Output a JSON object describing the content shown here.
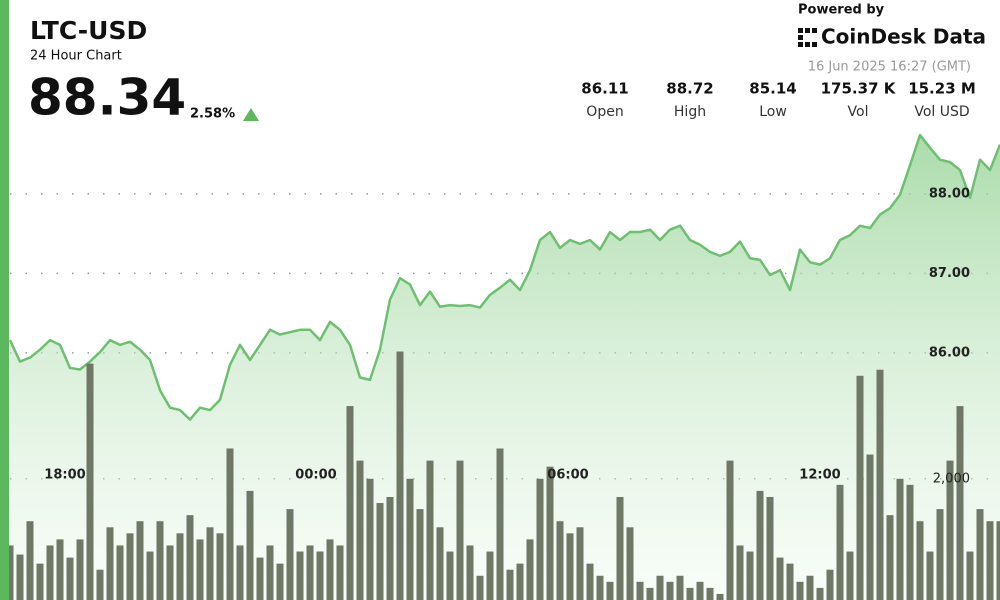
{
  "header": {
    "symbol": "LTC-USD",
    "subtitle": "24 Hour Chart",
    "price": 88.34,
    "change": "2.58%",
    "powered_by": "Powered by",
    "brand": "CoinDesk Data",
    "timestamp": "16 Jun 2025 16:27 (GMT)",
    "stats": [
      {
        "value": 86.11,
        "label": "Open"
      },
      {
        "value": 88.72,
        "label": "High"
      },
      {
        "value": 85.14,
        "label": "Low"
      },
      {
        "value": "175.37 K",
        "label": "Vol"
      },
      {
        "value": "15.23 M",
        "label": "Vol USD"
      }
    ]
  },
  "chart_data": {
    "type": "line",
    "grid": true,
    "xlim": [
      0,
      99
    ],
    "xticks": [
      {
        "value": 5.5,
        "label": "18:00"
      },
      {
        "value": 30.6,
        "label": "00:00"
      },
      {
        "value": 55.8,
        "label": "06:00"
      },
      {
        "value": 81,
        "label": "12:00"
      }
    ],
    "ylim": [
      82.89,
      90.44
    ],
    "yticks": [
      {
        "value": 86,
        "label": "86.00"
      },
      {
        "value": 87,
        "label": "87.00"
      },
      {
        "value": 88,
        "label": "88.00"
      }
    ],
    "y2lim": [
      0,
      9900
    ],
    "y2ticks": [
      {
        "value": 2000,
        "label": "2,000"
      }
    ],
    "series": [
      {
        "type": "line",
        "color": "#6cc070",
        "values": [
          86.16,
          85.89,
          85.94,
          86.04,
          86.16,
          86.1,
          85.81,
          85.79,
          85.89,
          86.01,
          86.16,
          86.1,
          86.14,
          86.04,
          85.91,
          85.53,
          85.31,
          85.28,
          85.16,
          85.31,
          85.28,
          85.41,
          85.85,
          86.1,
          85.91,
          86.1,
          86.29,
          86.23,
          86.26,
          86.29,
          86.29,
          86.16,
          86.39,
          86.29,
          86.1,
          85.69,
          85.66,
          86.04,
          86.67,
          86.94,
          86.86,
          86.6,
          86.77,
          86.58,
          86.6,
          86.59,
          86.6,
          86.57,
          86.73,
          86.82,
          86.92,
          86.79,
          87.04,
          87.42,
          87.52,
          87.32,
          87.42,
          87.37,
          87.42,
          87.3,
          87.52,
          87.42,
          87.52,
          87.52,
          87.55,
          87.42,
          87.55,
          87.6,
          87.42,
          87.36,
          87.27,
          87.22,
          87.27,
          87.4,
          87.19,
          87.17,
          86.98,
          87.04,
          86.79,
          87.3,
          87.14,
          87.11,
          87.19,
          87.42,
          87.48,
          87.6,
          87.57,
          87.74,
          87.82,
          87.99,
          88.36,
          88.74,
          88.58,
          88.43,
          88.4,
          88.3,
          87.95,
          88.43,
          88.3,
          88.62
        ]
      },
      {
        "type": "bar",
        "axis": "y2",
        "color": "#6f7867",
        "values": [
          900,
          750,
          1300,
          600,
          900,
          1000,
          700,
          1000,
          3900,
          500,
          1200,
          900,
          1100,
          1300,
          800,
          1300,
          900,
          1100,
          1400,
          1000,
          1200,
          1100,
          2500,
          900,
          1800,
          700,
          900,
          600,
          1500,
          800,
          900,
          800,
          1000,
          900,
          3200,
          2300,
          2000,
          1600,
          1700,
          4100,
          2000,
          1500,
          2300,
          1200,
          800,
          2300,
          900,
          400,
          800,
          2500,
          500,
          600,
          1000,
          2000,
          2200,
          1300,
          1100,
          1200,
          600,
          400,
          300,
          1700,
          1200,
          300,
          200,
          400,
          300,
          400,
          200,
          300,
          200,
          100,
          2300,
          900,
          800,
          1800,
          1700,
          700,
          600,
          300,
          400,
          200,
          500,
          1900,
          800,
          3700,
          2400,
          3800,
          1400,
          2000,
          1900,
          1300,
          800,
          1500,
          2300,
          3200,
          800,
          1500,
          1300,
          1300
        ]
      }
    ]
  }
}
